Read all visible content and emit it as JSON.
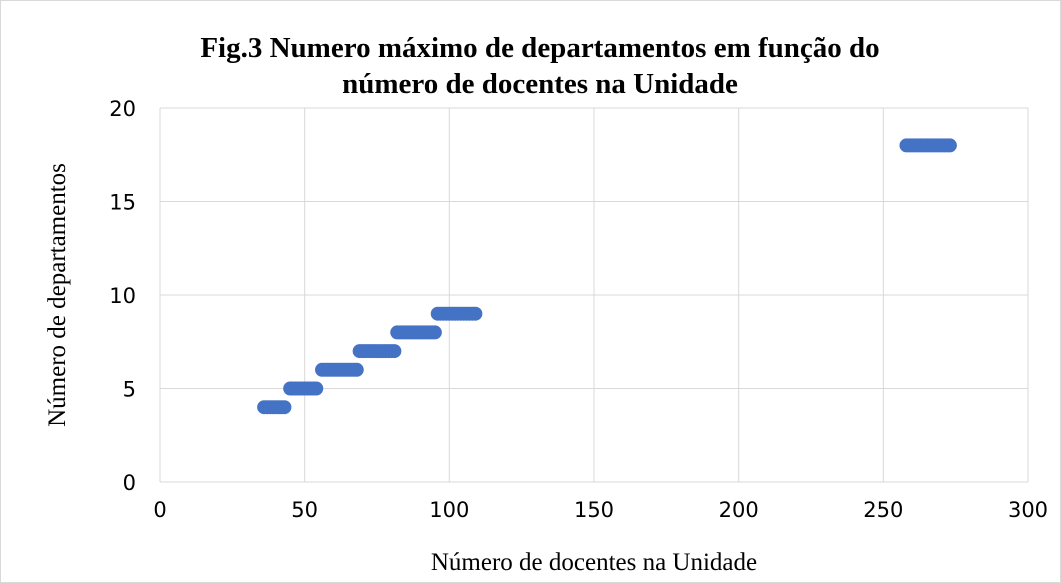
{
  "chart_data": {
    "type": "scatter",
    "title": [
      "Fig.3 Numero máximo de departamentos em função do",
      "número de docentes na Unidade"
    ],
    "xlabel": "Número de docentes na Unidade",
    "ylabel": "Número de departamentos",
    "color": "#4472c4",
    "grid": true,
    "xlim": [
      0,
      300
    ],
    "xticks": [
      0,
      50,
      100,
      150,
      200,
      250,
      300
    ],
    "ylim": [
      0,
      20
    ],
    "yticks": [
      0,
      5,
      10,
      15,
      20
    ],
    "x": [
      36,
      37,
      38,
      39,
      40,
      41,
      42,
      43,
      45,
      46,
      47,
      48,
      49,
      50,
      51,
      52,
      53,
      54,
      56,
      57,
      58,
      59,
      60,
      61,
      62,
      63,
      64,
      65,
      66,
      67,
      68,
      69,
      70,
      71,
      72,
      73,
      74,
      75,
      76,
      77,
      78,
      79,
      80,
      81,
      82,
      83,
      84,
      85,
      86,
      87,
      88,
      89,
      90,
      91,
      92,
      93,
      94,
      95,
      96,
      97,
      98,
      99,
      100,
      101,
      102,
      103,
      104,
      105,
      106,
      107,
      108,
      109,
      258,
      259,
      260,
      261,
      262,
      263,
      264,
      265,
      266,
      267,
      268,
      269,
      270,
      271,
      272,
      273
    ],
    "y": [
      4,
      4,
      4,
      4,
      4,
      4,
      4,
      4,
      5,
      5,
      5,
      5,
      5,
      5,
      5,
      5,
      5,
      5,
      6,
      6,
      6,
      6,
      6,
      6,
      6,
      6,
      6,
      6,
      6,
      6,
      6,
      7,
      7,
      7,
      7,
      7,
      7,
      7,
      7,
      7,
      7,
      7,
      7,
      7,
      8,
      8,
      8,
      8,
      8,
      8,
      8,
      8,
      8,
      8,
      8,
      8,
      8,
      8,
      9,
      9,
      9,
      9,
      9,
      9,
      9,
      9,
      9,
      9,
      9,
      9,
      9,
      9,
      18,
      18,
      18,
      18,
      18,
      18,
      18,
      18,
      18,
      18,
      18,
      18,
      18,
      18,
      18,
      18
    ]
  }
}
